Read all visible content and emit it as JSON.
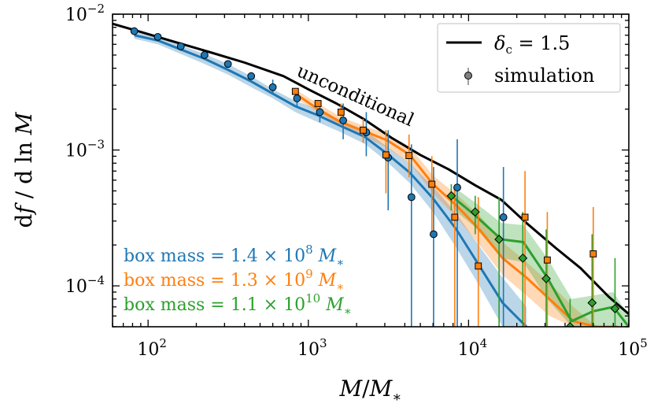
{
  "chart_data": {
    "type": "line",
    "xscale": "log",
    "yscale": "log",
    "xlim": [
      60,
      100000
    ],
    "ylim": [
      5e-05,
      0.01
    ],
    "xlabel": "M/M*",
    "ylabel": "df/d ln M",
    "grid": false,
    "x_ticks": [
      {
        "value": 100,
        "label": "10^2"
      },
      {
        "value": 1000,
        "label": "10^3"
      },
      {
        "value": 10000,
        "label": "10^4"
      },
      {
        "value": 100000,
        "label": "10^5"
      }
    ],
    "y_ticks": [
      {
        "value": 0.0001,
        "label": "10^-4"
      },
      {
        "value": 0.001,
        "label": "10^-3"
      },
      {
        "value": 0.01,
        "label": "10^-2"
      }
    ],
    "annotation": {
      "text": "unconditional",
      "x": 1900,
      "y": 0.0023,
      "rotation_deg": -24
    },
    "legend": {
      "location": "top-right",
      "entries": [
        {
          "label": "δc = 1.5",
          "style": "line",
          "color": "#000000"
        },
        {
          "label": "simulation",
          "style": "errorbar-marker",
          "color": "#808080"
        }
      ]
    },
    "unconditional": {
      "color": "#000000",
      "x": [
        60,
        90,
        150,
        250,
        400,
        700,
        1000,
        1500,
        2200,
        3300,
        5000,
        7500,
        11000,
        16000,
        23000,
        35000,
        50000,
        75000,
        100000
      ],
      "y": [
        0.0085,
        0.0074,
        0.0062,
        0.0052,
        0.0044,
        0.0035,
        0.0028,
        0.0022,
        0.0017,
        0.00123,
        0.00092,
        0.00072,
        0.00055,
        0.00043,
        0.00029,
        0.00019,
        0.000135,
        8.3e-05,
        6.2e-05
      ]
    },
    "series": [
      {
        "name": "box mass = 1.4 × 10^8 M*",
        "label_parts": [
          "box mass = 1.4 × 10",
          "8",
          " M*"
        ],
        "color": "#1f77b4",
        "marker": "circle",
        "model": {
          "x": [
            82,
            115,
            160,
            225,
            315,
            440,
            600,
            830,
            1150,
            1600,
            2250,
            3100,
            4300,
            6000,
            8400,
            11700,
            16300,
            23000
          ],
          "y": [
            0.007,
            0.0064,
            0.0055,
            0.0047,
            0.0039,
            0.0032,
            0.0026,
            0.0021,
            0.0018,
            0.0015,
            0.00125,
            0.00094,
            0.00068,
            0.00044,
            0.00026,
            0.00014,
            7.5e-05,
            5e-05
          ],
          "band_lo": [
            0.0066,
            0.006,
            0.0051,
            0.0043,
            0.0036,
            0.0029,
            0.0024,
            0.0019,
            0.0016,
            0.00135,
            0.00111,
            0.00082,
            0.00057,
            0.00035,
            0.00019,
            0.0001,
            5e-05,
            5e-05
          ],
          "band_hi": [
            0.0074,
            0.0068,
            0.0059,
            0.0051,
            0.0043,
            0.0035,
            0.0028,
            0.0023,
            0.002,
            0.00165,
            0.0014,
            0.00106,
            0.0008,
            0.00054,
            0.00034,
            0.000195,
            0.000115,
            7e-05
          ]
        },
        "points": {
          "x": [
            82,
            115,
            160,
            225,
            315,
            440,
            600,
            850,
            1180,
            1650,
            2300,
            3150,
            4400,
            6050,
            8500,
            16500
          ],
          "y": [
            0.0075,
            0.0068,
            0.0058,
            0.005,
            0.0043,
            0.0035,
            0.0029,
            0.0024,
            0.0019,
            0.00165,
            0.00135,
            0.00088,
            0.00045,
            0.00024,
            0.00053,
            0.00032
          ],
          "err_lo": [
            null,
            null,
            null,
            null,
            null,
            null,
            0.0026,
            0.0021,
            0.0016,
            0.0012,
            0.0009,
            0.00036,
            5e-05,
            5e-05,
            5e-05,
            5e-05
          ],
          "err_hi": [
            null,
            null,
            null,
            null,
            null,
            null,
            0.0033,
            0.0028,
            0.0023,
            0.0022,
            0.0019,
            0.0014,
            0.0011,
            0.00075,
            0.0012,
            0.00075
          ]
        }
      },
      {
        "name": "box mass = 1.3 × 10^9 M*",
        "label_parts": [
          "box mass = 1.3 × 10",
          "9",
          " M*"
        ],
        "color": "#ff7f0e",
        "marker": "square",
        "model": {
          "x": [
            830,
            1150,
            1600,
            2250,
            3100,
            4300,
            6000,
            8400,
            11700,
            16300,
            23000,
            32000,
            45000,
            63000,
            85000
          ],
          "y": [
            0.0026,
            0.002,
            0.0016,
            0.00137,
            0.00118,
            0.00092,
            0.00056,
            0.00039,
            0.00026,
            0.00016,
            0.000115,
            8e-05,
            5.5e-05,
            5e-05,
            5e-05
          ],
          "band_lo": [
            0.0024,
            0.0019,
            0.0015,
            0.00125,
            0.00104,
            0.0008,
            0.00048,
            0.00032,
            0.0002,
            0.00012,
            8.5e-05,
            6e-05,
            5e-05,
            5e-05,
            5e-05
          ],
          "band_hi": [
            0.0028,
            0.0022,
            0.00175,
            0.0015,
            0.00132,
            0.00105,
            0.00065,
            0.00047,
            0.00033,
            0.00021,
            0.00015,
            0.000105,
            7e-05,
            5e-05,
            5e-05
          ]
        },
        "points": {
          "x": [
            830,
            1150,
            1600,
            2200,
            3050,
            4250,
            5900,
            8200,
            11500,
            22500,
            31000,
            60000
          ],
          "y": [
            0.0027,
            0.0022,
            0.0019,
            0.0014,
            0.00092,
            0.00091,
            0.00056,
            0.00032,
            0.00014,
            0.00032,
            0.000155,
            0.000172
          ],
          "err_lo": [
            null,
            null,
            0.00165,
            0.00113,
            0.00048,
            0.00063,
            0.00025,
            5e-05,
            5e-05,
            5e-05,
            5e-05,
            5e-05
          ],
          "err_hi": [
            null,
            null,
            0.0022,
            0.0017,
            0.0014,
            0.0013,
            0.0009,
            0.00053,
            0.00045,
            0.0007,
            0.00035,
            0.00038
          ]
        }
      },
      {
        "name": "box mass = 1.1 × 10^10 M*",
        "label_parts": [
          "box mass = 1.1 × 10",
          "10",
          " M*"
        ],
        "color": "#2ca02c",
        "marker": "diamond",
        "model": {
          "x": [
            8000,
            11000,
            16000,
            22000,
            31000,
            44000,
            60000,
            80000,
            100000
          ],
          "y": [
            0.00045,
            0.00033,
            0.00022,
            0.00021,
            0.000115,
            5.5e-05,
            6.5e-05,
            7e-05,
            5e-05
          ],
          "band_lo": [
            0.00037,
            0.00027,
            0.00016,
            0.00015,
            8e-05,
            5e-05,
            5e-05,
            5e-05,
            5e-05
          ],
          "band_hi": [
            0.00054,
            0.00041,
            0.00029,
            0.00028,
            0.00016,
            8e-05,
            8.5e-05,
            9e-05,
            6e-05
          ]
        },
        "points": {
          "x": [
            7800,
            11000,
            15500,
            21800,
            30500,
            43000,
            59000,
            82000
          ],
          "y": [
            0.00046,
            0.00035,
            0.00022,
            0.00016,
            0.000113,
            5e-05,
            7.5e-05,
            6.8e-05
          ],
          "err_lo": [
            0.00036,
            0.00024,
            5e-05,
            5e-05,
            5e-05,
            5e-05,
            5e-05,
            5e-05
          ],
          "err_hi": [
            0.00056,
            0.00046,
            0.00045,
            0.00035,
            0.00026,
            8e-05,
            0.00024,
            0.00016
          ]
        }
      }
    ]
  }
}
